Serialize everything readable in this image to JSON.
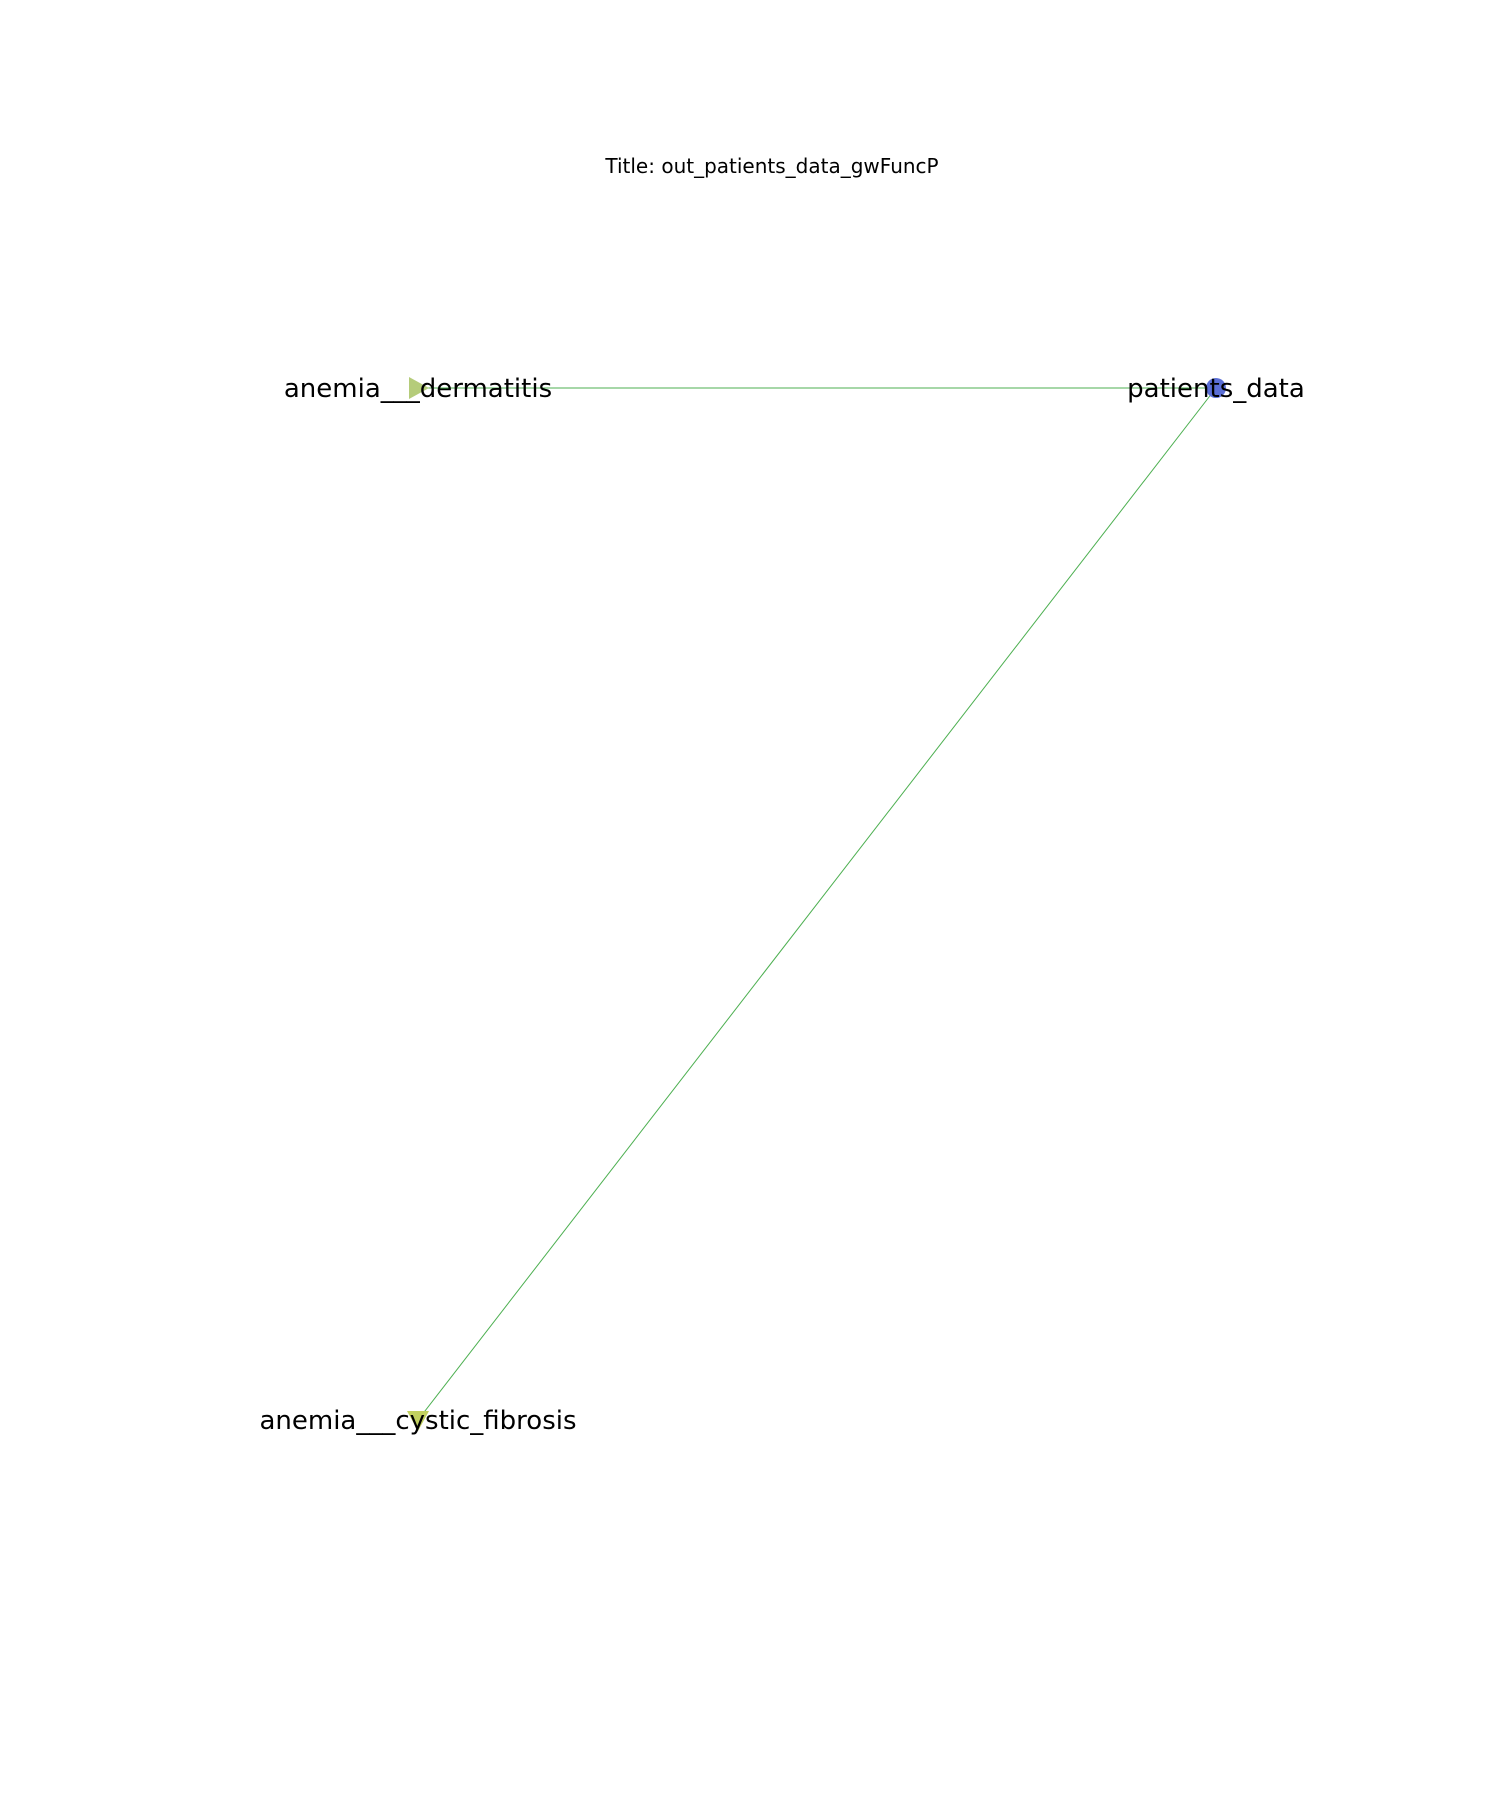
{
  "title": "Title: out_patients_data_gwFuncP",
  "nodes": [
    {
      "id": "anemia___dermatitis",
      "label": "anemia___dermatitis",
      "shape": "triangle-right",
      "color": "#b5cc7a"
    },
    {
      "id": "patients_data",
      "label": "patients_data",
      "shape": "circle",
      "color": "#5b6fd6"
    },
    {
      "id": "anemia___cystic_fibrosis",
      "label": "anemia___cystic_fibrosis",
      "shape": "triangle-down",
      "color": "#c2d160"
    }
  ],
  "edges": [
    {
      "source": "anemia___dermatitis",
      "target": "patients_data",
      "color": "#4caf50"
    },
    {
      "source": "anemia___cystic_fibrosis",
      "target": "patients_data",
      "color": "#4caf50"
    }
  ]
}
